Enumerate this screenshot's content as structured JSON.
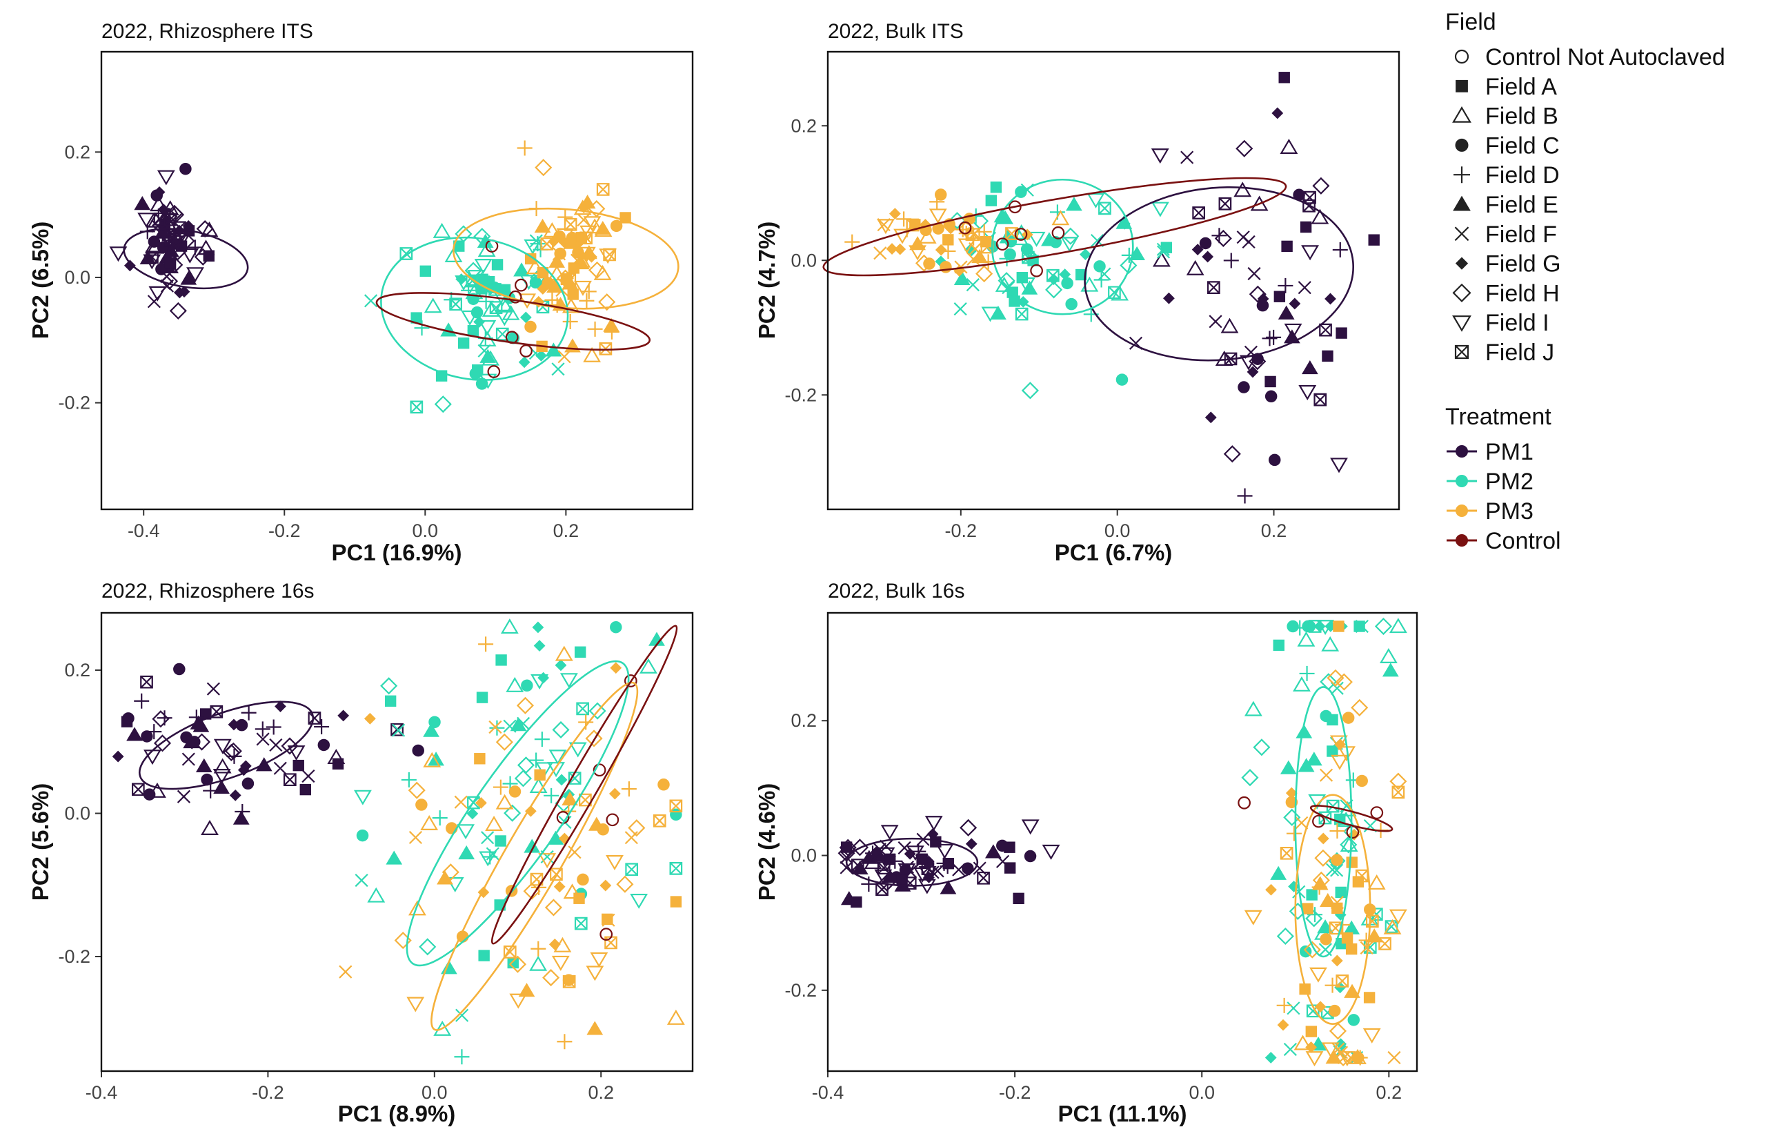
{
  "colors": {
    "PM1": "#2d1140",
    "PM2": "#2fd9b3",
    "PM3": "#f5b13b",
    "Control": "#7a1111"
  },
  "chart_data": [
    {
      "type": "scatter",
      "title": "2022, Rhizosphere ITS",
      "xlabel": "PC1 (16.9%)",
      "ylabel": "PC2 (6.5%)",
      "xlim": [
        -0.46,
        0.38
      ],
      "ylim": [
        -0.37,
        0.36
      ],
      "xticks": [
        -0.4,
        -0.2,
        0.0,
        0.2
      ],
      "xtick_labels": [
        "-0.4",
        "-0.2",
        "0.0",
        "0.2"
      ],
      "yticks": [
        -0.2,
        0.0,
        0.2
      ],
      "ytick_labels": [
        "-0.2",
        "0.0",
        "0.2"
      ],
      "groups": [
        {
          "treatment": "PM1",
          "center": [
            -0.36,
            0.06
          ],
          "spread": [
            0.05,
            0.1
          ],
          "n": 70,
          "ellipse": {
            "cx": -0.34,
            "cy": 0.03,
            "rx": 0.04,
            "ry": 0.1,
            "angle": -80
          }
        },
        {
          "treatment": "PM2",
          "center": [
            0.09,
            -0.04
          ],
          "spread": [
            0.12,
            0.13
          ],
          "n": 80,
          "ellipse": {
            "cx": 0.07,
            "cy": -0.05,
            "rx": 0.1,
            "ry": 0.15,
            "angle": -80
          }
        },
        {
          "treatment": "PM3",
          "center": [
            0.21,
            0.03
          ],
          "spread": [
            0.08,
            0.15
          ],
          "n": 80,
          "ellipse": {
            "cx": 0.2,
            "cy": 0.03,
            "rx": 0.07,
            "ry": 0.18,
            "angle": -85
          }
        },
        {
          "treatment": "Control",
          "center": [
            0.12,
            -0.07
          ],
          "spread": [
            0.06,
            0.2
          ],
          "n": 6,
          "ellipse": {
            "cx": 0.125,
            "cy": -0.07,
            "rx": 0.03,
            "ry": 0.22,
            "angle": -82
          }
        }
      ]
    },
    {
      "type": "scatter",
      "title": "2022, Bulk ITS",
      "xlabel": "PC1 (6.7%)",
      "ylabel": "PC2 (4.7%)",
      "xlim": [
        -0.37,
        0.36
      ],
      "ylim": [
        -0.37,
        0.31
      ],
      "xticks": [
        -0.2,
        0.0,
        0.2
      ],
      "xtick_labels": [
        "-0.2",
        "0.0",
        "0.2"
      ],
      "yticks": [
        -0.2,
        0.0,
        0.2
      ],
      "ytick_labels": [
        "-0.2",
        "0.0",
        "0.2"
      ],
      "groups": [
        {
          "treatment": "PM1",
          "center": [
            0.18,
            -0.05
          ],
          "spread": [
            0.14,
            0.3
          ],
          "n": 70,
          "ellipse": {
            "cx": 0.13,
            "cy": -0.02,
            "rx": 0.11,
            "ry": 0.2,
            "angle": -95
          }
        },
        {
          "treatment": "PM2",
          "center": [
            -0.1,
            0.01
          ],
          "spread": [
            0.16,
            0.13
          ],
          "n": 75,
          "ellipse": {
            "cx": -0.07,
            "cy": 0.02,
            "rx": 0.09,
            "ry": 0.1,
            "angle": 0
          }
        },
        {
          "treatment": "PM3",
          "center": [
            -0.22,
            0.03
          ],
          "spread": [
            0.12,
            0.06
          ],
          "n": 50,
          "ellipse": null
        },
        {
          "treatment": "Control",
          "center": [
            -0.13,
            0.06
          ],
          "spread": [
            0.2,
            0.08
          ],
          "n": 6,
          "ellipse": {
            "cx": -0.08,
            "cy": 0.05,
            "rx": 0.3,
            "ry": 0.04,
            "angle": -10
          }
        }
      ]
    },
    {
      "type": "scatter",
      "title": "2022, Rhizosphere 16s",
      "xlabel": "PC1 (8.9%)",
      "ylabel": "PC2 (5.6%)",
      "xlim": [
        -0.4,
        0.31
      ],
      "ylim": [
        -0.36,
        0.28
      ],
      "xticks": [
        -0.4,
        -0.2,
        0.0,
        0.2
      ],
      "xtick_labels": [
        "-0.4",
        "-0.2",
        "0.0",
        "0.2"
      ],
      "yticks": [
        -0.2,
        0.0,
        0.2
      ],
      "ytick_labels": [
        "-0.2",
        "0.0",
        "0.2"
      ],
      "groups": [
        {
          "treatment": "PM1",
          "center": [
            -0.25,
            0.09
          ],
          "spread": [
            0.16,
            0.1
          ],
          "n": 70,
          "ellipse": {
            "cx": -0.25,
            "cy": 0.095,
            "rx": 0.11,
            "ry": 0.045,
            "angle": -20
          }
        },
        {
          "treatment": "PM2",
          "center": [
            0.1,
            0.0
          ],
          "spread": [
            0.2,
            0.3
          ],
          "n": 80,
          "ellipse": {
            "cx": 0.1,
            "cy": 0.0,
            "rx": 0.22,
            "ry": 0.06,
            "angle": -55
          }
        },
        {
          "treatment": "PM3",
          "center": [
            0.11,
            -0.07
          ],
          "spread": [
            0.18,
            0.3
          ],
          "n": 80,
          "ellipse": {
            "cx": 0.12,
            "cy": -0.06,
            "rx": 0.24,
            "ry": 0.04,
            "angle": -60
          }
        },
        {
          "treatment": "Control",
          "center": [
            0.17,
            0.05
          ],
          "spread": [
            0.1,
            0.3
          ],
          "n": 5,
          "ellipse": {
            "cx": 0.18,
            "cy": 0.04,
            "rx": 0.22,
            "ry": 0.02,
            "angle": -60
          }
        }
      ]
    },
    {
      "type": "scatter",
      "title": "2022, Bulk 16s",
      "xlabel": "PC1 (11.1%)",
      "ylabel": "PC2 (4.6%)",
      "xlim": [
        -0.4,
        0.23
      ],
      "ylim": [
        -0.32,
        0.36
      ],
      "xticks": [
        -0.4,
        -0.2,
        0.0,
        0.2
      ],
      "xtick_labels": [
        "-0.4",
        "-0.2",
        "0.0",
        "0.2"
      ],
      "yticks": [
        -0.2,
        0.0,
        0.2
      ],
      "ytick_labels": [
        "-0.2",
        "0.0",
        "0.2"
      ],
      "groups": [
        {
          "treatment": "PM1",
          "center": [
            -0.3,
            -0.01
          ],
          "spread": [
            0.14,
            0.05
          ],
          "n": 75,
          "ellipse": {
            "cx": -0.31,
            "cy": -0.01,
            "rx": 0.07,
            "ry": 0.035,
            "angle": 0
          }
        },
        {
          "treatment": "PM2",
          "center": [
            0.13,
            0.05
          ],
          "spread": [
            0.08,
            0.5
          ],
          "n": 80,
          "ellipse": {
            "cx": 0.13,
            "cy": 0.05,
            "rx": 0.03,
            "ry": 0.2,
            "angle": 0
          }
        },
        {
          "treatment": "PM3",
          "center": [
            0.14,
            -0.08
          ],
          "spread": [
            0.07,
            0.4
          ],
          "n": 80,
          "ellipse": {
            "cx": 0.14,
            "cy": -0.08,
            "rx": 0.04,
            "ry": 0.17,
            "angle": 0
          }
        },
        {
          "treatment": "Control",
          "center": [
            0.15,
            0.055
          ],
          "spread": [
            0.08,
            0.04
          ],
          "n": 4,
          "ellipse": {
            "cx": 0.16,
            "cy": 0.055,
            "rx": 0.045,
            "ry": 0.01,
            "angle": 15
          }
        }
      ]
    }
  ],
  "legend": {
    "field_title": "Field",
    "field_items": [
      {
        "label": "Control Not Autoclaved",
        "shape": "circle-open"
      },
      {
        "label": "Field A",
        "shape": "square-filled"
      },
      {
        "label": "Field B",
        "shape": "triangle-open"
      },
      {
        "label": "Field C",
        "shape": "circle-filled"
      },
      {
        "label": "Field D",
        "shape": "plus"
      },
      {
        "label": "Field E",
        "shape": "triangle-filled"
      },
      {
        "label": "Field F",
        "shape": "cross"
      },
      {
        "label": "Field G",
        "shape": "diamond-filled"
      },
      {
        "label": "Field H",
        "shape": "diamond-open"
      },
      {
        "label": "Field I",
        "shape": "triangle-down-open"
      },
      {
        "label": "Field J",
        "shape": "square-cross"
      }
    ],
    "treatment_title": "Treatment",
    "treatment_items": [
      {
        "label": "PM1",
        "color_key": "PM1"
      },
      {
        "label": "PM2",
        "color_key": "PM2"
      },
      {
        "label": "PM3",
        "color_key": "PM3"
      },
      {
        "label": "Control",
        "color_key": "Control"
      }
    ]
  }
}
